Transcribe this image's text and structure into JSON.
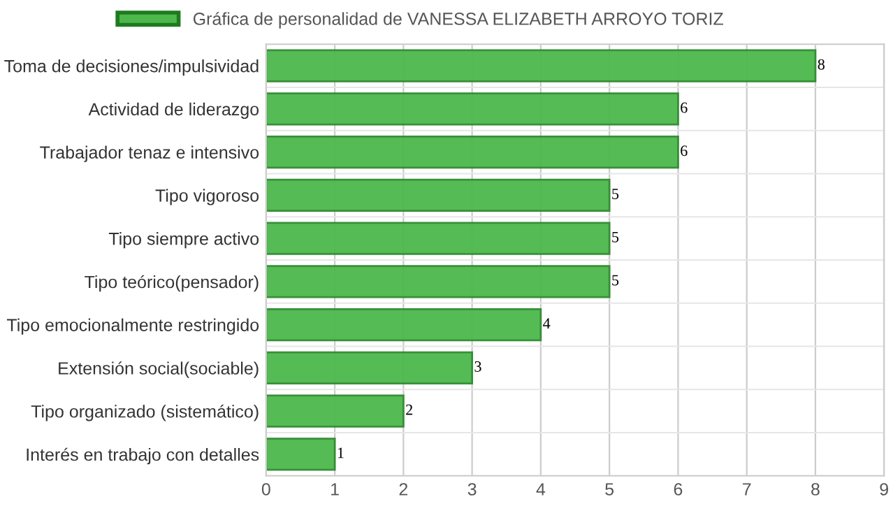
{
  "chart_data": {
    "type": "bar",
    "orientation": "horizontal",
    "categories": [
      "Toma de decisiones/impulsividad",
      "Actividad de liderazgo",
      "Trabajador tenaz e intensivo",
      "Tipo vigoroso",
      "Tipo siempre activo",
      "Tipo teórico(pensador)",
      "Tipo emocionalmente restringido",
      "Extensión social(sociable)",
      "Tipo organizado (sistemático)",
      "Interés en trabajo con detalles"
    ],
    "series": [
      {
        "name": "Gráfica de personalidad de VANESSA ELIZABETH ARROYO TORIZ",
        "color": "#4cb84c",
        "values": [
          8,
          6,
          6,
          5,
          5,
          5,
          4,
          3,
          2,
          1
        ]
      }
    ],
    "xlim": [
      0,
      9
    ],
    "xticks": [
      0,
      1,
      2,
      3,
      4,
      5,
      6,
      7,
      8,
      9
    ],
    "grid": true,
    "legend": "top",
    "data_labels": true
  }
}
